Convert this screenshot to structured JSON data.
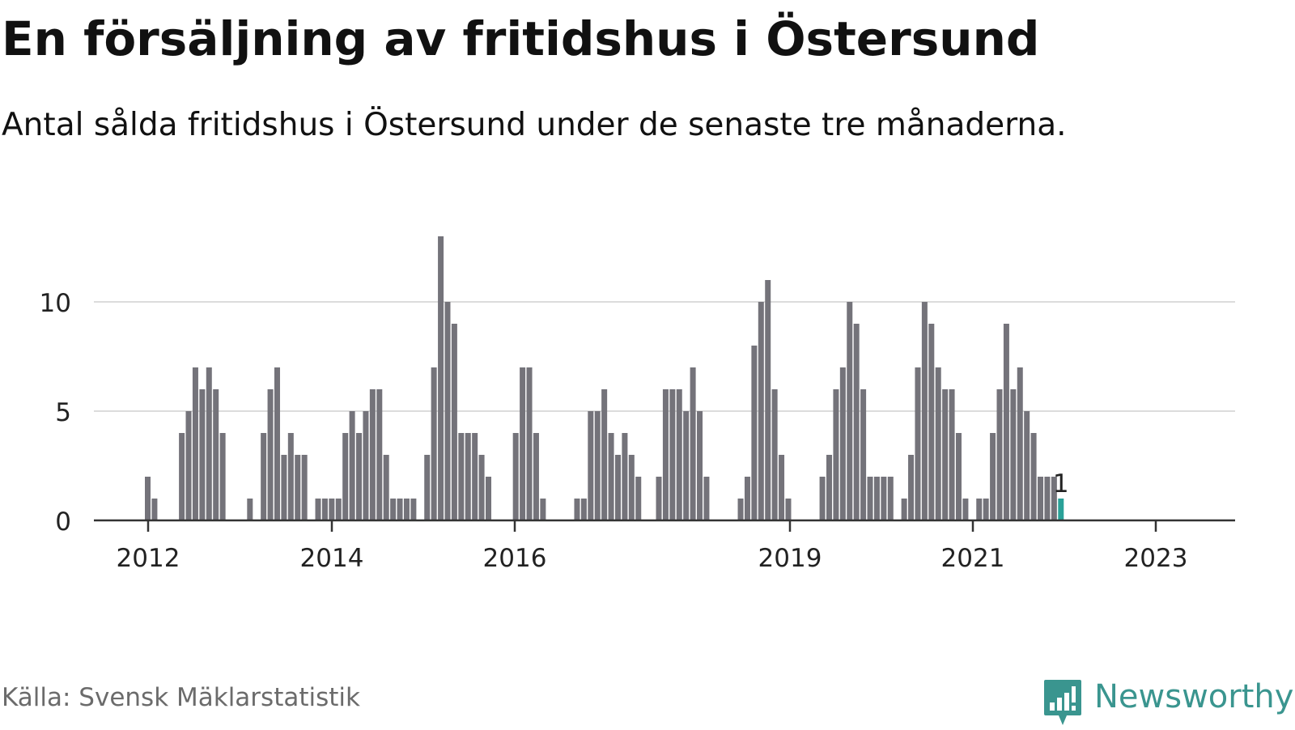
{
  "title": "En försäljning av fritidshus i Östersund",
  "subtitle": "Antal sålda fritidshus i Östersund under de senaste tre månaderna.",
  "source": "Källa: Svensk Mäklarstatistik",
  "brand": {
    "name": "Newsworthy",
    "icon": "newsworthy-bar-chart-icon"
  },
  "colors": {
    "bar": "#74737a",
    "highlight": "#2aa198",
    "grid": "#dcdcdc",
    "axis": "#333333",
    "brand": "#3a958f"
  },
  "chart_data": {
    "type": "bar",
    "xlabel": "",
    "ylabel": "",
    "ylim": [
      0,
      13
    ],
    "yticks": [
      0,
      5,
      10
    ],
    "grid": true,
    "x_tick_labels": [
      "2012",
      "2014",
      "2016",
      "2019",
      "2021",
      "2023"
    ],
    "values": [
      2,
      1,
      0,
      0,
      0,
      4,
      5,
      7,
      6,
      7,
      6,
      4,
      0,
      0,
      0,
      1,
      0,
      4,
      6,
      7,
      3,
      4,
      3,
      3,
      0,
      1,
      1,
      1,
      1,
      4,
      5,
      4,
      5,
      6,
      6,
      3,
      1,
      1,
      1,
      1,
      0,
      3,
      7,
      13,
      10,
      9,
      4,
      4,
      4,
      3,
      2,
      0,
      0,
      0,
      4,
      7,
      7,
      4,
      1,
      0,
      0,
      0,
      0,
      1,
      1,
      5,
      5,
      6,
      4,
      3,
      4,
      3,
      2,
      0,
      0,
      2,
      6,
      6,
      6,
      5,
      7,
      5,
      2,
      0,
      0,
      0,
      0,
      1,
      2,
      8,
      10,
      11,
      6,
      3,
      1,
      0,
      0,
      0,
      0,
      2,
      3,
      6,
      7,
      10,
      9,
      6,
      2,
      2,
      2,
      2,
      0,
      1,
      3,
      7,
      10,
      9,
      7,
      6,
      6,
      4,
      1,
      0,
      1,
      1,
      4,
      6,
      9,
      6,
      7,
      5,
      4,
      2,
      2,
      2,
      1
    ],
    "highlight_index": 134,
    "annotations": [
      {
        "index": 134,
        "label": "1"
      }
    ]
  }
}
